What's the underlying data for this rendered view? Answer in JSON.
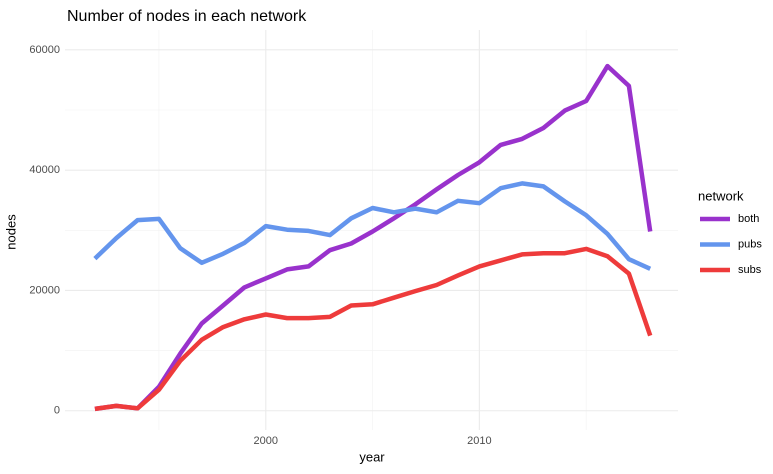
{
  "chart_data": {
    "type": "line",
    "title": "Number of nodes in each network",
    "xlabel": "year",
    "ylabel": "nodes",
    "x": [
      1992,
      1993,
      1994,
      1995,
      1996,
      1997,
      1998,
      1999,
      2000,
      2001,
      2002,
      2003,
      2004,
      2005,
      2006,
      2007,
      2008,
      2009,
      2010,
      2011,
      2012,
      2013,
      2014,
      2015,
      2016,
      2017,
      2018
    ],
    "series": [
      {
        "name": "both",
        "color": "#9932cc",
        "values": [
          300,
          800,
          400,
          4000,
          9500,
          14500,
          17500,
          20500,
          22000,
          23500,
          24000,
          26700,
          27800,
          29800,
          32000,
          34300,
          36800,
          39200,
          41300,
          44200,
          45200,
          47000,
          49900,
          51500,
          57300,
          54000,
          29800
        ]
      },
      {
        "name": "pubs",
        "color": "#6495ed",
        "values": [
          25300,
          28700,
          31700,
          31900,
          27000,
          24600,
          26100,
          27900,
          30700,
          30100,
          29900,
          29200,
          32000,
          33700,
          33000,
          33600,
          33000,
          34900,
          34500,
          37000,
          37800,
          37300,
          34800,
          32500,
          29400,
          25200,
          23600
        ]
      },
      {
        "name": "subs",
        "color": "#ee3b3b",
        "values": [
          300,
          800,
          400,
          3500,
          8300,
          11800,
          13900,
          15200,
          16000,
          15400,
          15400,
          15600,
          17500,
          17700,
          18800,
          19900,
          20900,
          22500,
          24000,
          25000,
          26000,
          26200,
          26200,
          26900,
          25700,
          22800,
          12500
        ]
      }
    ],
    "legend_title": "network",
    "legend": "right",
    "xlim": [
      1990.6,
      2019.3
    ],
    "xticks": [
      2000,
      2010
    ],
    "xminorticks": [
      1995,
      2005,
      2015
    ],
    "ylim": [
      -3200,
      63300
    ],
    "yticks": [
      0,
      20000,
      40000,
      60000
    ],
    "yminorticks": [
      10000,
      30000,
      50000
    ],
    "grid": true
  }
}
